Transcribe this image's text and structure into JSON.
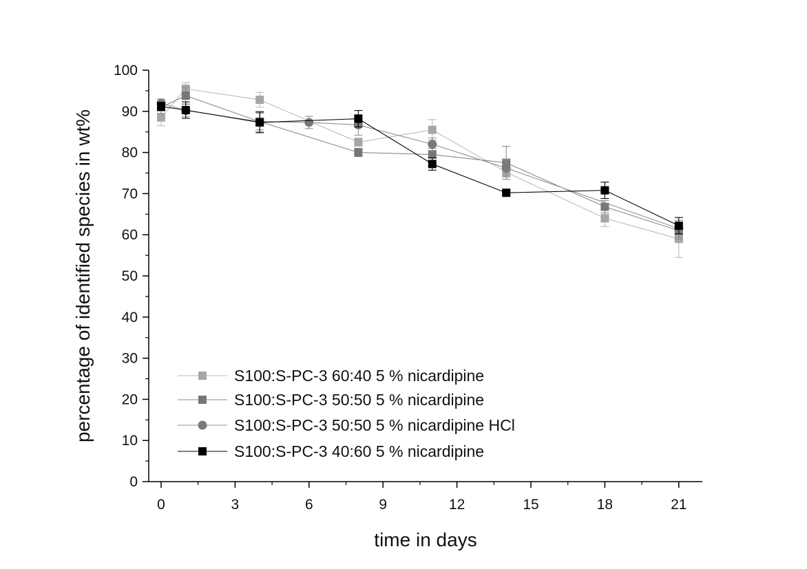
{
  "chart_data": {
    "type": "line",
    "xlabel": "time in days",
    "ylabel": "percentage of identified species in wt%",
    "xlim": [
      -1,
      23
    ],
    "ylim": [
      0,
      100
    ],
    "xticks": [
      0,
      3,
      6,
      9,
      12,
      15,
      18,
      21
    ],
    "yticks": [
      0,
      10,
      20,
      30,
      40,
      50,
      60,
      70,
      80,
      90,
      100
    ],
    "grid": false,
    "legend_position": "bottom-left",
    "series": [
      {
        "name": "S100:S-PC-3 60:40 5 % nicardipine",
        "marker": "square",
        "color": "#a6a6a6",
        "line_color": "#bbbbbb",
        "x": [
          0,
          1,
          4,
          8,
          11,
          14,
          18,
          21
        ],
        "y": [
          88.5,
          95.5,
          92.8,
          82.5,
          85.5,
          75.2,
          64.0,
          59.0
        ],
        "err": [
          2.0,
          1.5,
          1.8,
          1.0,
          2.5,
          1.2,
          2.0,
          4.5
        ]
      },
      {
        "name": "S100:S-PC-3 50:50 5 % nicardipine",
        "marker": "square",
        "color": "#777777",
        "line_color": "#8a8a8a",
        "x": [
          0,
          1,
          4,
          8,
          11,
          14,
          18,
          21
        ],
        "y": [
          91.0,
          93.8,
          87.5,
          80.0,
          79.5,
          77.5,
          66.8,
          61.0
        ],
        "err": [
          1.5,
          2.0,
          2.5,
          1.0,
          1.5,
          4.0,
          1.5,
          2.0
        ]
      },
      {
        "name": "S100:S-PC-3 50:50 5 % nicardipine HCl",
        "marker": "circle",
        "color": "#7a7a7a",
        "line_color": "#909090",
        "x": [
          0,
          1,
          4,
          6,
          8,
          11,
          14,
          21
        ],
        "y": [
          92.0,
          90.2,
          87.5,
          87.3,
          86.7,
          82.0,
          76.2,
          61.5
        ],
        "err": [
          1.0,
          1.5,
          2.0,
          1.5,
          2.5,
          1.5,
          2.0,
          2.0
        ]
      },
      {
        "name": "S100:S-PC-3 40:60 5 % nicardipine",
        "marker": "square",
        "color": "#000000",
        "line_color": "#000000",
        "x": [
          0,
          1,
          4,
          8,
          11,
          14,
          18,
          21
        ],
        "y": [
          91.2,
          90.3,
          87.3,
          88.2,
          77.2,
          70.2,
          70.8,
          62.2
        ],
        "err": [
          1.0,
          2.0,
          2.5,
          2.0,
          1.5,
          0.5,
          2.0,
          2.0
        ]
      }
    ]
  }
}
